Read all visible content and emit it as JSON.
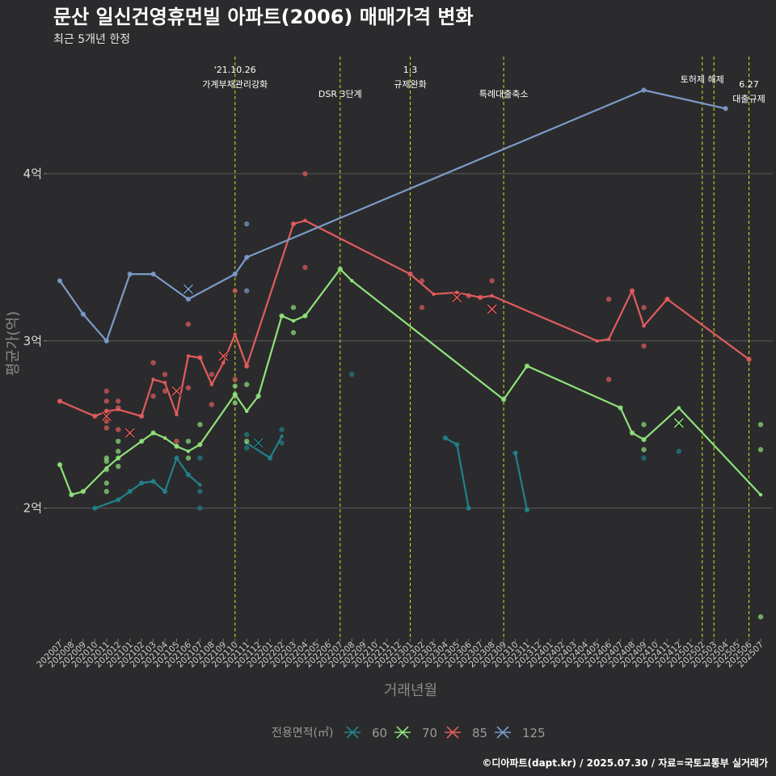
{
  "chart_data": {
    "type": "line",
    "title": "문산 일신건영휴먼빌 아파트(2006) 매매가격 변화",
    "subtitle": "최근 5개년 한정",
    "xlabel": "거래년월",
    "ylabel": "평균가(억)",
    "caption": "©디아파트(dapt.kr) / 2025.07.30 / 자료=국토교통부 실거래가",
    "x_labels": [
      "202007",
      "202008",
      "202009",
      "202010",
      "202011",
      "202012",
      "202101",
      "202102",
      "202103",
      "202104",
      "202105",
      "202106",
      "202107",
      "202108",
      "202109",
      "202110",
      "202111",
      "202112",
      "202201",
      "202202",
      "202203",
      "202204",
      "202205",
      "202206",
      "202207",
      "202208",
      "202209",
      "202210",
      "202211",
      "202212",
      "202301",
      "202302",
      "202303",
      "202304",
      "202305",
      "202306",
      "202307",
      "202308",
      "202309",
      "202310",
      "202311",
      "202312",
      "202401",
      "202402",
      "202403",
      "202404",
      "202405",
      "202406",
      "202407",
      "202408",
      "202409",
      "202410",
      "202411",
      "202412",
      "202501",
      "202502",
      "202503",
      "202504",
      "202505",
      "202506",
      "202507"
    ],
    "ylim": [
      1.22,
      4.72
    ],
    "y_ticks": [
      {
        "v": 2,
        "label": "2억"
      },
      {
        "v": 3,
        "label": "3억"
      },
      {
        "v": 4,
        "label": "4억"
      }
    ],
    "legend": {
      "title": "전용면적(㎡)",
      "position": "bottom"
    },
    "grid": true,
    "series": [
      {
        "name": "60",
        "color": "#21828a",
        "segments": [
          [
            [
              "202010",
              2.0
            ],
            [
              "202012",
              2.05
            ],
            [
              "202101",
              2.1
            ],
            [
              "202102",
              2.15
            ],
            [
              "202103",
              2.16
            ],
            [
              "202104",
              2.1
            ],
            [
              "202105",
              2.3
            ],
            [
              "202106",
              2.2
            ],
            [
              "202107",
              2.14
            ]
          ],
          [
            [
              "202111",
              2.39
            ],
            [
              "202201",
              2.3
            ],
            [
              "202202",
              2.43
            ]
          ],
          [
            [
              "202304",
              2.42
            ],
            [
              "202305",
              2.38
            ],
            [
              "202306",
              2.0
            ]
          ],
          [
            [
              "202310",
              2.33
            ],
            [
              "202311",
              1.99
            ]
          ]
        ],
        "points": [
          [
            "202010",
            2.0
          ],
          [
            "202012",
            2.05
          ],
          [
            "202101",
            2.1
          ],
          [
            "202102",
            2.15
          ],
          [
            "202103",
            2.16
          ],
          [
            "202104",
            2.1
          ],
          [
            "202105",
            2.3
          ],
          [
            "202106",
            2.2
          ],
          [
            "202107",
            2.0
          ],
          [
            "202107",
            2.1
          ],
          [
            "202107",
            2.3
          ],
          [
            "202111",
            2.44
          ],
          [
            "202111",
            2.36
          ],
          [
            "202201",
            2.3
          ],
          [
            "202202",
            2.47
          ],
          [
            "202202",
            2.39
          ],
          [
            "202208",
            2.8
          ],
          [
            "202304",
            2.42
          ],
          [
            "202305",
            2.38
          ],
          [
            "202306",
            2.0
          ],
          [
            "202310",
            2.33
          ],
          [
            "202311",
            1.99
          ],
          [
            "202409",
            2.3
          ],
          [
            "202412",
            2.34
          ]
        ],
        "crosses": [
          [
            "202112",
            2.39
          ]
        ]
      },
      {
        "name": "70",
        "color": "#8fe27a",
        "segments": [
          [
            [
              "202007",
              2.26
            ],
            [
              "202008",
              2.08
            ],
            [
              "202009",
              2.1
            ],
            [
              "202011",
              2.24
            ],
            [
              "202012",
              2.3
            ],
            [
              "202102",
              2.4
            ],
            [
              "202103",
              2.45
            ],
            [
              "202104",
              2.42
            ],
            [
              "202105",
              2.37
            ],
            [
              "202106",
              2.34
            ],
            [
              "202107",
              2.38
            ],
            [
              "202110",
              2.68
            ],
            [
              "202111",
              2.58
            ],
            [
              "202112",
              2.67
            ],
            [
              "202202",
              3.15
            ],
            [
              "202203",
              3.12
            ],
            [
              "202204",
              3.15
            ],
            [
              "202207",
              3.43
            ],
            [
              "202208",
              3.36
            ],
            [
              "202309",
              2.65
            ],
            [
              "202311",
              2.85
            ],
            [
              "202407",
              2.6
            ],
            [
              "202408",
              2.45
            ],
            [
              "202409",
              2.41
            ],
            [
              "202412",
              2.6
            ],
            [
              "202507",
              2.08
            ]
          ]
        ],
        "points": [
          [
            "202007",
            2.26
          ],
          [
            "202008",
            2.08
          ],
          [
            "202009",
            2.1
          ],
          [
            "202011",
            2.3
          ],
          [
            "202011",
            2.28
          ],
          [
            "202011",
            2.23
          ],
          [
            "202011",
            2.15
          ],
          [
            "202011",
            2.1
          ],
          [
            "202012",
            2.4
          ],
          [
            "202012",
            2.34
          ],
          [
            "202012",
            2.3
          ],
          [
            "202012",
            2.25
          ],
          [
            "202102",
            2.4
          ],
          [
            "202103",
            2.45
          ],
          [
            "202105",
            2.37
          ],
          [
            "202106",
            2.4
          ],
          [
            "202106",
            2.3
          ],
          [
            "202107",
            2.5
          ],
          [
            "202107",
            2.38
          ],
          [
            "202110",
            2.73
          ],
          [
            "202110",
            2.68
          ],
          [
            "202110",
            2.63
          ],
          [
            "202111",
            2.74
          ],
          [
            "202111",
            2.4
          ],
          [
            "202112",
            2.67
          ],
          [
            "202202",
            3.15
          ],
          [
            "202203",
            3.2
          ],
          [
            "202203",
            3.05
          ],
          [
            "202204",
            3.15
          ],
          [
            "202207",
            3.43
          ],
          [
            "202309",
            2.65
          ],
          [
            "202311",
            2.85
          ],
          [
            "202407",
            2.6
          ],
          [
            "202408",
            2.45
          ],
          [
            "202409",
            2.5
          ],
          [
            "202409",
            2.41
          ],
          [
            "202409",
            2.35
          ],
          [
            "202507",
            2.5
          ],
          [
            "202507",
            2.35
          ],
          [
            "202507",
            1.35
          ]
        ],
        "crosses": [
          [
            "202412",
            2.51
          ]
        ]
      },
      {
        "name": "85",
        "color": "#e25c5c",
        "segments": [
          [
            [
              "202007",
              2.64
            ],
            [
              "202010",
              2.55
            ],
            [
              "202011",
              2.58
            ],
            [
              "202012",
              2.59
            ],
            [
              "202102",
              2.55
            ],
            [
              "202103",
              2.77
            ],
            [
              "202104",
              2.75
            ],
            [
              "202105",
              2.56
            ],
            [
              "202106",
              2.91
            ],
            [
              "202107",
              2.9
            ],
            [
              "202108",
              2.74
            ],
            [
              "202109",
              2.87
            ],
            [
              "202110",
              3.04
            ],
            [
              "202111",
              2.85
            ],
            [
              "202203",
              3.7
            ],
            [
              "202204",
              3.72
            ],
            [
              "202301",
              3.4
            ],
            [
              "202303",
              3.28
            ],
            [
              "202305",
              3.29
            ],
            [
              "202307",
              3.26
            ],
            [
              "202308",
              3.27
            ],
            [
              "202405",
              3.0
            ],
            [
              "202406",
              3.01
            ],
            [
              "202408",
              3.3
            ],
            [
              "202409",
              3.09
            ],
            [
              "202411",
              3.25
            ],
            [
              "202506",
              2.89
            ]
          ]
        ],
        "points": [
          [
            "202007",
            2.64
          ],
          [
            "202010",
            2.55
          ],
          [
            "202011",
            2.7
          ],
          [
            "202011",
            2.64
          ],
          [
            "202011",
            2.58
          ],
          [
            "202011",
            2.52
          ],
          [
            "202011",
            2.48
          ],
          [
            "202012",
            2.64
          ],
          [
            "202012",
            2.6
          ],
          [
            "202012",
            2.47
          ],
          [
            "202102",
            2.55
          ],
          [
            "202103",
            2.87
          ],
          [
            "202103",
            2.67
          ],
          [
            "202104",
            2.8
          ],
          [
            "202104",
            2.7
          ],
          [
            "202105",
            2.4
          ],
          [
            "202106",
            3.1
          ],
          [
            "202106",
            2.72
          ],
          [
            "202107",
            2.9
          ],
          [
            "202108",
            2.8
          ],
          [
            "202108",
            2.62
          ],
          [
            "202110",
            3.3
          ],
          [
            "202110",
            2.77
          ],
          [
            "202111",
            2.85
          ],
          [
            "202203",
            3.7
          ],
          [
            "202204",
            4.0
          ],
          [
            "202204",
            3.44
          ],
          [
            "202301",
            3.4
          ],
          [
            "202302",
            3.36
          ],
          [
            "202302",
            3.2
          ],
          [
            "202306",
            3.27
          ],
          [
            "202307",
            3.26
          ],
          [
            "202308",
            3.36
          ],
          [
            "202406",
            3.25
          ],
          [
            "202406",
            2.77
          ],
          [
            "202408",
            3.3
          ],
          [
            "202409",
            3.2
          ],
          [
            "202409",
            2.97
          ],
          [
            "202411",
            3.25
          ],
          [
            "202506",
            2.89
          ]
        ],
        "crosses": [
          [
            "202011",
            2.55
          ],
          [
            "202101",
            2.45
          ],
          [
            "202105",
            2.7
          ],
          [
            "202109",
            2.91
          ],
          [
            "202305",
            3.26
          ],
          [
            "202308",
            3.19
          ]
        ]
      },
      {
        "name": "125",
        "color": "#7b9bc8",
        "segments": [
          [
            [
              "202007",
              3.36
            ],
            [
              "202009",
              3.16
            ],
            [
              "202011",
              3.0
            ],
            [
              "202101",
              3.4
            ],
            [
              "202103",
              3.4
            ],
            [
              "202106",
              3.25
            ],
            [
              "202110",
              3.4
            ],
            [
              "202111",
              3.5
            ],
            [
              "202409",
              4.5
            ],
            [
              "202504",
              4.39
            ]
          ]
        ],
        "points": [
          [
            "202007",
            3.36
          ],
          [
            "202009",
            3.16
          ],
          [
            "202011",
            3.0
          ],
          [
            "202101",
            3.4
          ],
          [
            "202103",
            3.4
          ],
          [
            "202106",
            3.25
          ],
          [
            "202110",
            3.4
          ],
          [
            "202111",
            3.7
          ],
          [
            "202111",
            3.3
          ],
          [
            "202111",
            3.5
          ],
          [
            "202409",
            4.5
          ],
          [
            "202504",
            4.39
          ]
        ],
        "crosses": [
          [
            "202106",
            3.31
          ]
        ]
      }
    ],
    "annotations": [
      {
        "x": "202110",
        "lines": [
          "'21.10.26",
          "가계부채관리강화"
        ]
      },
      {
        "x": "202207",
        "lines": [
          "DSR 3단계"
        ]
      },
      {
        "x": "202301",
        "lines": [
          "1.3",
          "규제완화"
        ]
      },
      {
        "x": "202309",
        "lines": [
          "특례대출축소"
        ]
      },
      {
        "x": "202502",
        "lines": [
          "토허제 해제"
        ]
      },
      {
        "x": "202503",
        "lines": []
      },
      {
        "x": "202506",
        "lines": [
          "6.27",
          "대출규제"
        ]
      }
    ],
    "colors": {
      "background": "#2b2b2d",
      "grid": "#5a5a5a",
      "vline": "#d6e022"
    }
  }
}
